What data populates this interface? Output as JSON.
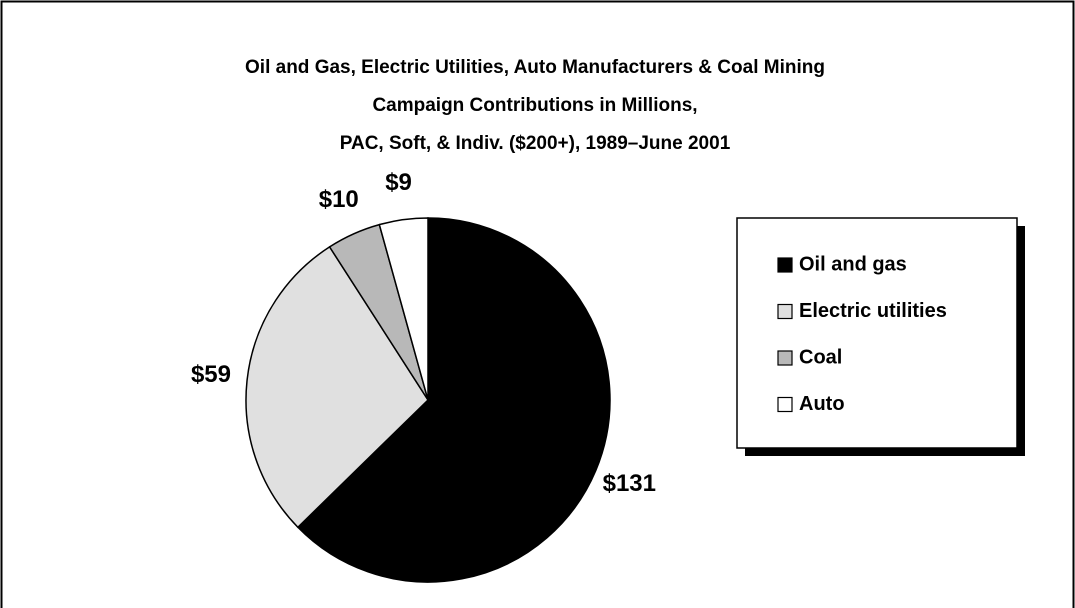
{
  "chart_data": {
    "type": "pie",
    "title": [
      "Oil and Gas, Electric Utilities, Auto Manufacturers & Coal Mining",
      "Campaign Contributions in Millions,",
      "PAC, Soft, & Indiv. ($200+), 1989–June 2001"
    ],
    "categories": [
      "Oil and gas",
      "Electric utilities",
      "Coal",
      "Auto"
    ],
    "values": [
      131,
      59,
      10,
      9
    ],
    "value_labels": [
      "$131",
      "$59",
      "$10",
      "$9"
    ],
    "colors": [
      "#000000",
      "#e0e0e0",
      "#b8b8b8",
      "#ffffff"
    ],
    "legend": "right"
  }
}
